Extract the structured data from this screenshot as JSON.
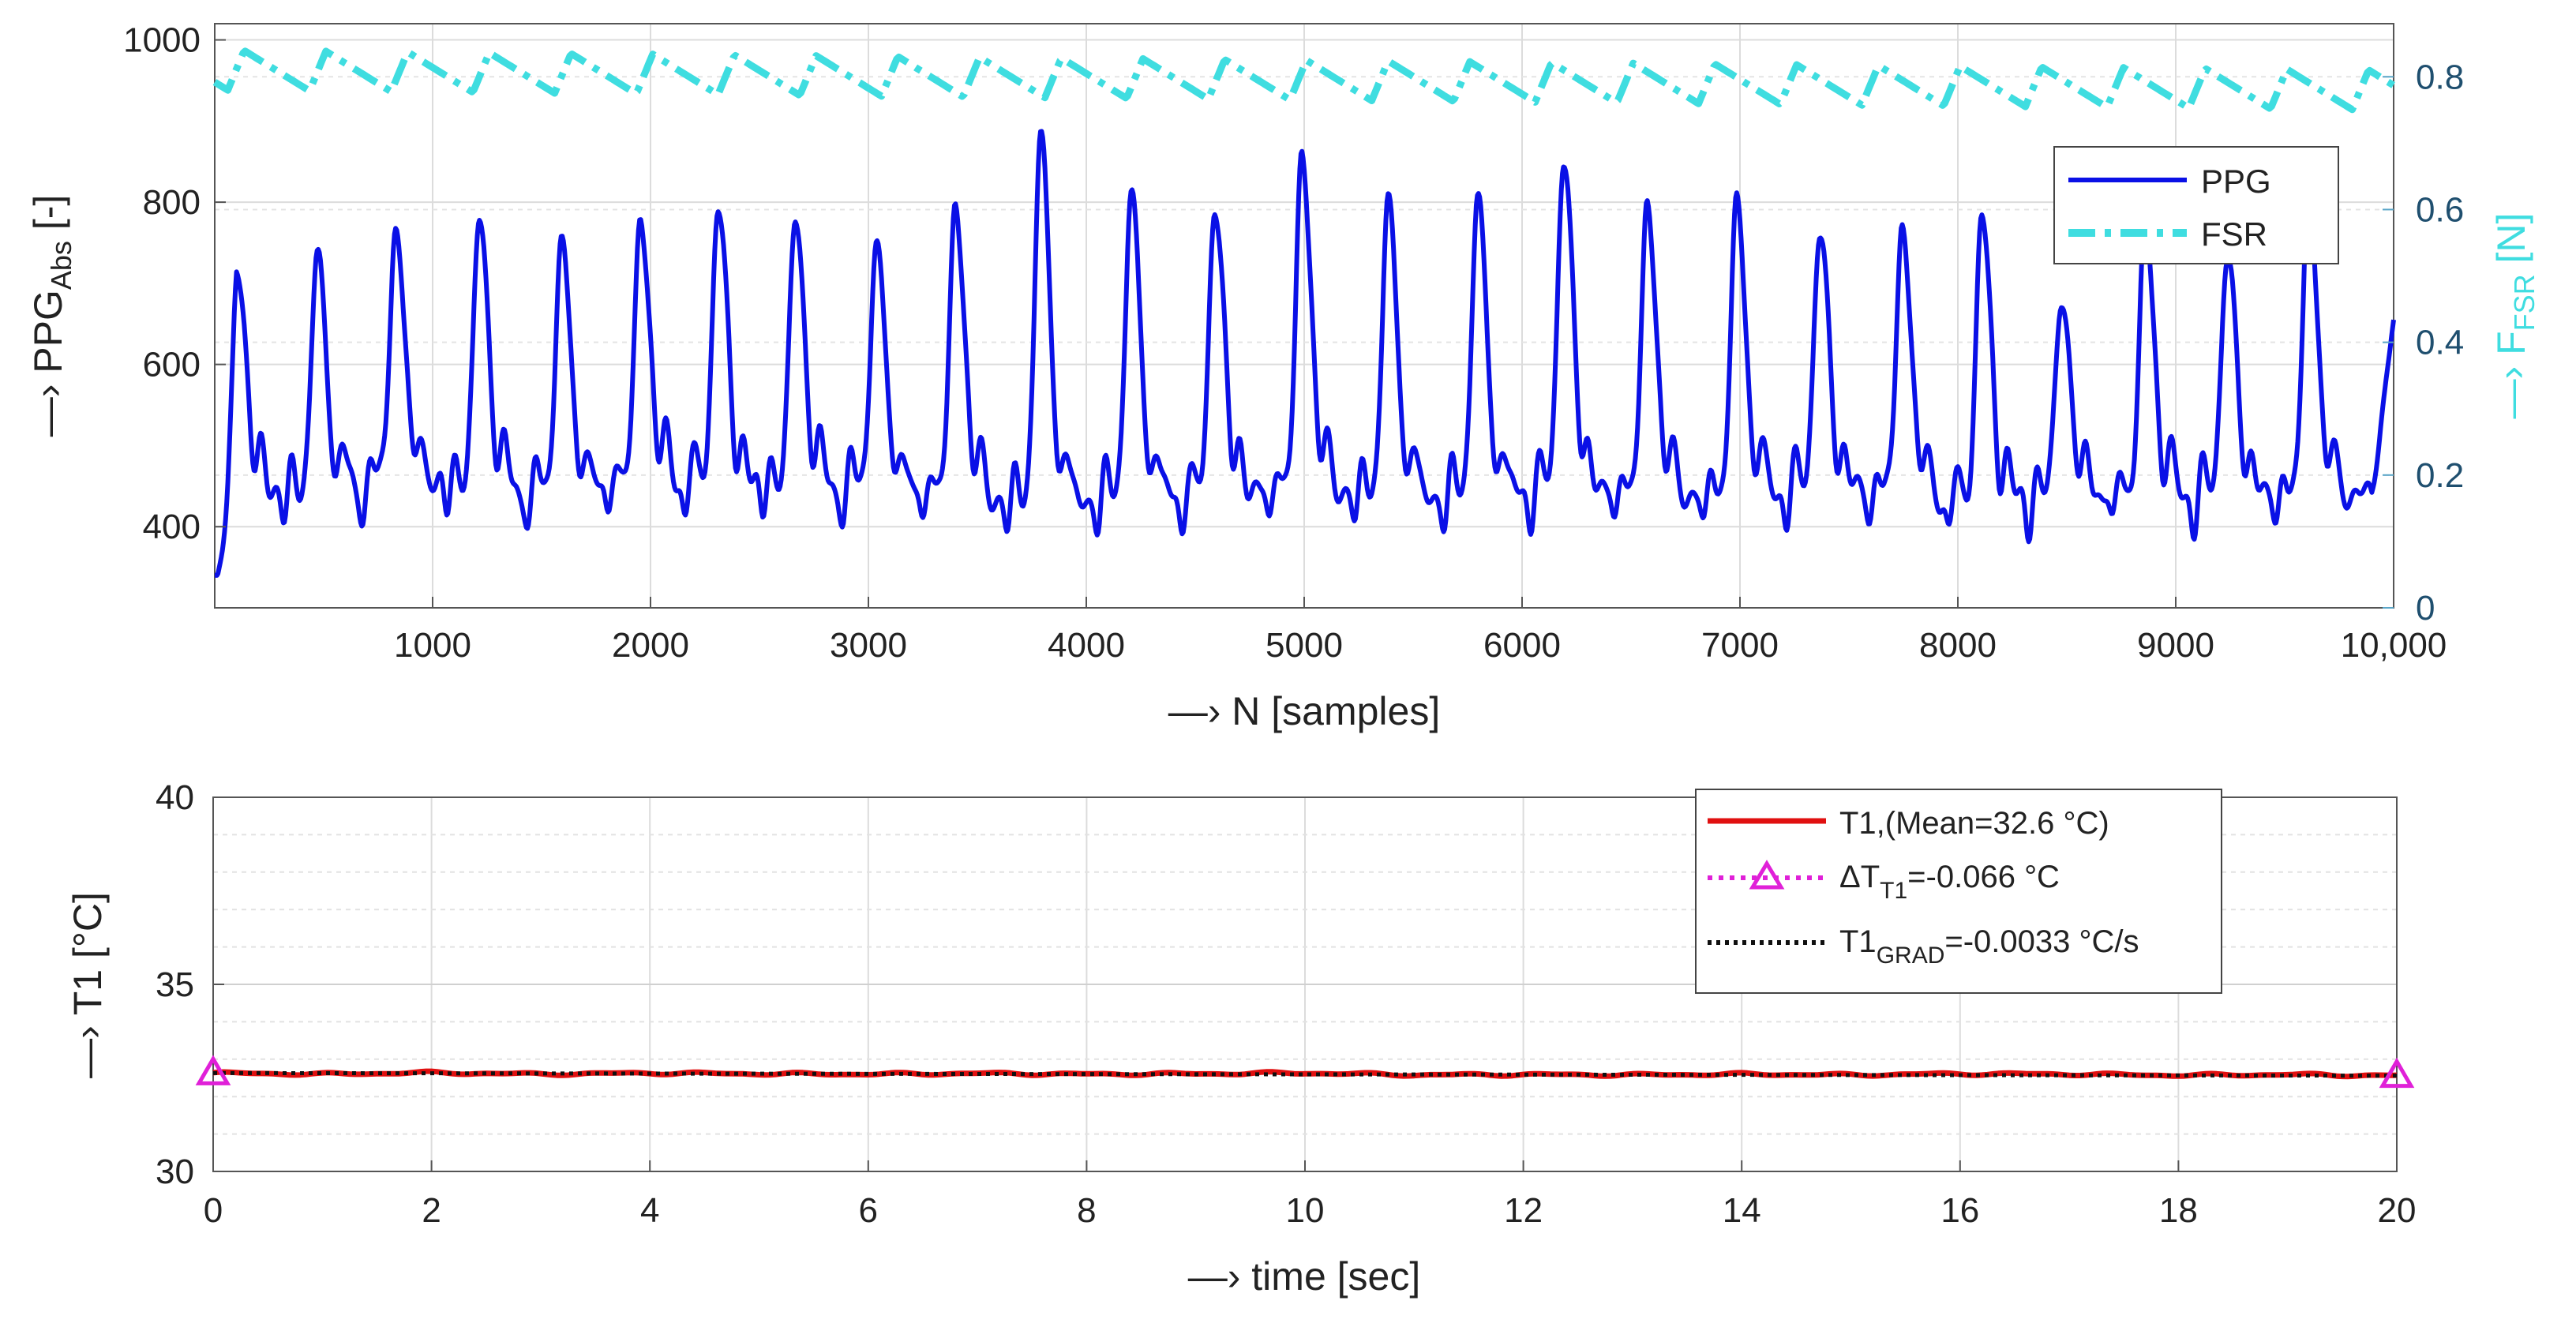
{
  "chart_data": [
    {
      "type": "line",
      "xlabel": "—› N [samples]",
      "ylabel_left": {
        "prefix": "—› PPG",
        "sub": "Abs",
        "suffix": " [-]"
      },
      "ylabel_right": {
        "prefix": "—› F",
        "sub": "FSR",
        "suffix": " [N]"
      },
      "xlim": [
        0,
        10000
      ],
      "ylim_left": [
        300,
        1020
      ],
      "ylim_right": [
        0,
        0.88
      ],
      "xticks": [
        1000,
        2000,
        3000,
        4000,
        5000,
        6000,
        7000,
        8000,
        9000,
        10000
      ],
      "xtick_labels": [
        "1000",
        "2000",
        "3000",
        "4000",
        "5000",
        "6000",
        "7000",
        "8000",
        "9000",
        "10,000"
      ],
      "yticks_left": [
        400,
        600,
        800,
        1000
      ],
      "yticks_left_labels": [
        "400",
        "600",
        "800",
        "1000"
      ],
      "yticks_right": [
        0,
        0.2,
        0.4,
        0.6,
        0.8
      ],
      "yticks_right_labels": [
        "0",
        "0.2",
        "0.4",
        "0.6",
        "0.8"
      ],
      "grid": true,
      "legend_position": "top-right",
      "colors": {
        "ppg": "#0a10e6",
        "fsr": "#3fdde0",
        "right_axis": "#5aa6c8"
      },
      "series": [
        {
          "name": "PPG",
          "axis": "left",
          "style": "solid",
          "beat_times": [
            100,
            470,
            830,
            1215,
            1590,
            1955,
            2310,
            2665,
            3035,
            3400,
            3790,
            4205,
            4590,
            4990,
            5385,
            5795,
            6190,
            6575,
            6985,
            7365,
            7745,
            8110,
            8475,
            8860,
            9235,
            9610
          ],
          "beat_peaks": [
            730,
            730,
            770,
            780,
            750,
            780,
            795,
            780,
            745,
            795,
            875,
            805,
            800,
            860,
            795,
            800,
            860,
            795,
            795,
            765,
            770,
            780,
            685,
            770,
            740,
            810
          ],
          "beat_baselines": [
            450,
            440,
            460,
            450,
            440,
            460,
            455,
            450,
            450,
            440,
            430,
            440,
            440,
            450,
            440,
            440,
            450,
            440,
            440,
            450,
            440,
            430,
            440,
            440,
            440,
            440
          ],
          "end_value": 655
        },
        {
          "name": "FSR",
          "axis": "right",
          "style": "dash-dot",
          "period_samples": 375,
          "peak_values_start_end": [
            0.84,
            0.81
          ],
          "trough_values_start_end": [
            0.78,
            0.75
          ]
        }
      ]
    },
    {
      "type": "line",
      "xlabel": "—› time [sec]",
      "ylabel": "—› T1 [°C]",
      "xlim": [
        0,
        20
      ],
      "ylim": [
        30,
        40
      ],
      "xticks": [
        0,
        2,
        4,
        6,
        8,
        10,
        12,
        14,
        16,
        18,
        20
      ],
      "xtick_labels": [
        "0",
        "2",
        "4",
        "6",
        "8",
        "10",
        "12",
        "14",
        "16",
        "18",
        "20"
      ],
      "yticks": [
        30,
        35,
        40
      ],
      "ytick_labels": [
        "30",
        "35",
        "40"
      ],
      "grid": true,
      "legend_position": "top-right",
      "colors": {
        "t1": "#e01010",
        "delta": "#e020d8",
        "grad": "#101010"
      },
      "series": [
        {
          "name": "T1,(Mean=32.6 °C)",
          "style": "solid",
          "x": [
            0,
            1,
            2,
            3,
            4,
            5,
            6,
            7,
            8,
            9,
            10,
            11,
            12,
            13,
            14,
            15,
            16,
            17,
            18,
            19,
            20
          ],
          "y": [
            32.63,
            32.6,
            32.64,
            32.6,
            32.63,
            32.61,
            32.6,
            32.62,
            32.6,
            32.61,
            32.63,
            32.58,
            32.59,
            32.58,
            32.6,
            32.58,
            32.61,
            32.6,
            32.57,
            32.59,
            32.56
          ]
        },
        {
          "name": "ΔT_T1=-0.066 °C",
          "style": "dotted-triangle",
          "x": [
            0,
            20
          ],
          "y": [
            32.63,
            32.56
          ]
        },
        {
          "name": "T1_GRAD=-0.0033 °C/s",
          "style": "dotted",
          "x": [
            0,
            20
          ],
          "y": [
            32.63,
            32.56
          ]
        }
      ],
      "legend_labels": [
        {
          "text": "T1,(Mean=32.6 °C)"
        },
        {
          "prefix": "ΔT",
          "sub": "T1",
          "suffix": "=-0.066 °C"
        },
        {
          "prefix": "T1",
          "sub": "GRAD",
          "suffix": "=-0.0033 °C/s"
        }
      ]
    }
  ]
}
